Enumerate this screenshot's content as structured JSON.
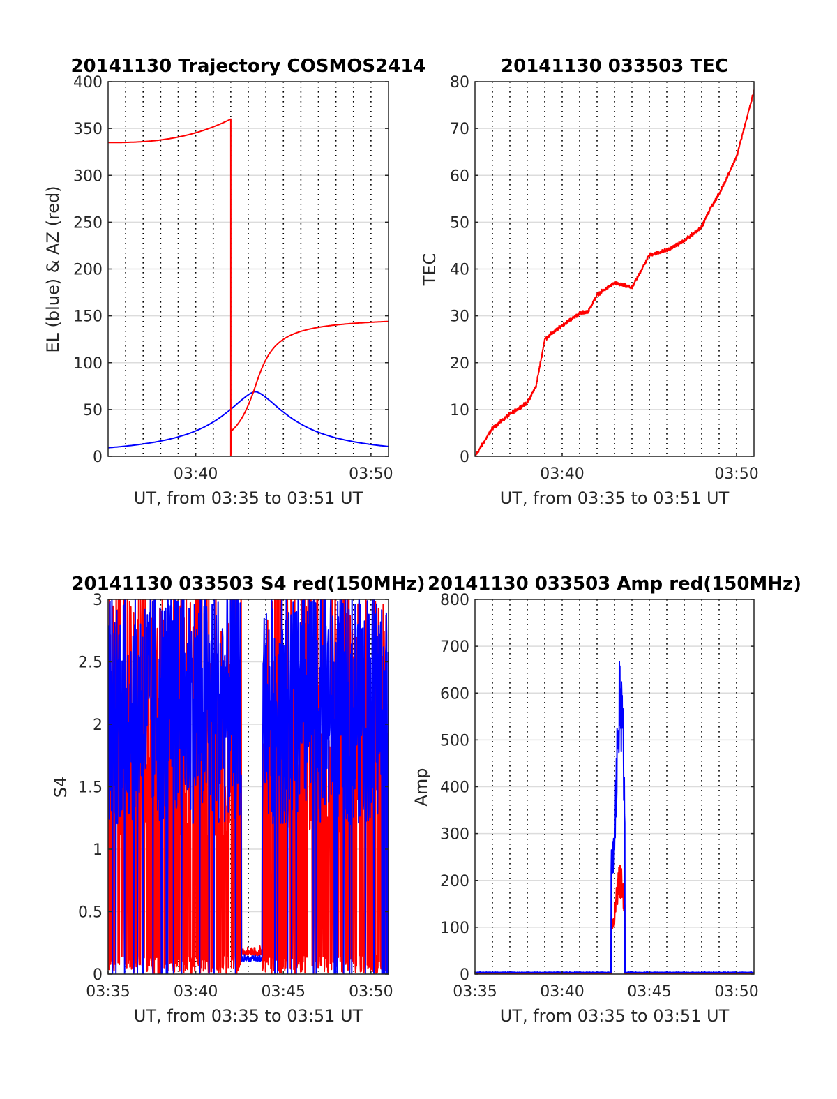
{
  "figure": {
    "background": "#ffffff"
  },
  "chart_data": [
    {
      "id": "trajectory",
      "type": "line",
      "title": "20141130 Trajectory COSMOS2414",
      "xlabel": "UT, from 03:35 to 03:51 UT",
      "ylabel": "EL (blue) & AZ (red)",
      "xlim": [
        0,
        16
      ],
      "ylim": [
        0,
        400
      ],
      "xticks": [
        5,
        15
      ],
      "xtick_labels": [
        "03:40",
        "03:50"
      ],
      "yticks": [
        0,
        50,
        100,
        150,
        200,
        250,
        300,
        350,
        400
      ],
      "ytick_labels": [
        "0",
        "50",
        "100",
        "150",
        "200",
        "250",
        "300",
        "350",
        "400"
      ],
      "grid": {
        "vertical_minutes": [
          1,
          2,
          3,
          4,
          5,
          6,
          7,
          8,
          9,
          10,
          11,
          12,
          13,
          14,
          15
        ],
        "horizontal": true
      },
      "series": [
        {
          "color": "#0000ff",
          "kind": "elevation",
          "peak_x": 8.4,
          "peak_y": 69
        },
        {
          "color": "#ff0000",
          "kind": "azimuth",
          "start_y": 335,
          "jump_x": 7,
          "jump_top": 360,
          "mid_x": 8.3,
          "mid_y": 69,
          "end_y": 150
        }
      ]
    },
    {
      "id": "tec",
      "type": "line",
      "title": "20141130 033503 TEC",
      "xlabel": "UT, from 03:35 to 03:51 UT",
      "ylabel": "TEC",
      "xlim": [
        0,
        16
      ],
      "ylim": [
        0,
        80
      ],
      "xticks": [
        5,
        15
      ],
      "xtick_labels": [
        "03:40",
        "03:50"
      ],
      "yticks": [
        0,
        10,
        20,
        30,
        40,
        50,
        60,
        70,
        80
      ],
      "ytick_labels": [
        "0",
        "10",
        "20",
        "30",
        "40",
        "50",
        "60",
        "70",
        "80"
      ],
      "grid": {
        "vertical_minutes": [
          1,
          2,
          3,
          4,
          5,
          6,
          7,
          8,
          9,
          10,
          11,
          12,
          13,
          14,
          15
        ],
        "horizontal": true
      },
      "series": [
        {
          "color": "#ff0000",
          "x": [
            0,
            1,
            2,
            3,
            3.5,
            4,
            5,
            6,
            6.5,
            7,
            8,
            9,
            10,
            11,
            12,
            13,
            13.5,
            14,
            15,
            16
          ],
          "y": [
            0,
            6,
            9,
            11.5,
            15,
            25,
            28,
            30.5,
            31,
            34.5,
            37,
            36,
            43,
            44,
            46,
            49,
            53,
            56,
            64,
            78
          ]
        }
      ]
    },
    {
      "id": "s4",
      "type": "line",
      "title": "20141130 033503 S4 red(150MHz)",
      "xlabel": "UT, from 03:35 to 03:51 UT",
      "ylabel": "S4",
      "xlim": [
        0,
        16
      ],
      "ylim": [
        0,
        3
      ],
      "xticks": [
        0,
        5,
        10,
        15
      ],
      "xtick_labels": [
        "03:35",
        "03:40",
        "03:45",
        "03:50"
      ],
      "yticks": [
        0,
        0.5,
        1,
        1.5,
        2,
        2.5,
        3
      ],
      "ytick_labels": [
        "0",
        "0.5",
        "1",
        "1.5",
        "2",
        "2.5",
        "3"
      ],
      "grid": {
        "vertical_minutes": [
          1,
          2,
          3,
          4,
          5,
          6,
          7,
          8,
          9,
          10,
          11,
          12,
          13,
          14,
          15
        ],
        "horizontal": true
      },
      "series": [
        {
          "color": "#ff0000",
          "kind": "noisy-red",
          "quiet_window": [
            7.6,
            8.8
          ],
          "quiet_level": 0.15
        },
        {
          "color": "#0000ff",
          "kind": "noisy-blue",
          "quiet_window": [
            7.6,
            8.8
          ],
          "quiet_level": 0.1
        }
      ]
    },
    {
      "id": "amp",
      "type": "line",
      "title": "20141130 033503 Amp red(150MHz)",
      "xlabel": "UT, from 03:35 to 03:51 UT",
      "ylabel": "Amp",
      "xlim": [
        0,
        16
      ],
      "ylim": [
        0,
        800
      ],
      "xticks": [
        0,
        5,
        10,
        15
      ],
      "xtick_labels": [
        "03:35",
        "03:40",
        "03:45",
        "03:50"
      ],
      "yticks": [
        0,
        100,
        200,
        300,
        400,
        500,
        600,
        700,
        800
      ],
      "ytick_labels": [
        "0",
        "100",
        "200",
        "300",
        "400",
        "500",
        "600",
        "700",
        "800"
      ],
      "grid": {
        "vertical_minutes": [
          1,
          2,
          3,
          4,
          5,
          6,
          7,
          8,
          9,
          10,
          11,
          12,
          13,
          14,
          15
        ],
        "horizontal": true
      },
      "series": [
        {
          "color": "#ff0000",
          "kind": "burst",
          "window": [
            7.8,
            8.6
          ],
          "peak": 235,
          "floor": 70
        },
        {
          "color": "#0000ff",
          "kind": "burst",
          "window": [
            7.8,
            8.6
          ],
          "peak": 685,
          "floor": 120,
          "baseline": 3
        }
      ]
    }
  ]
}
